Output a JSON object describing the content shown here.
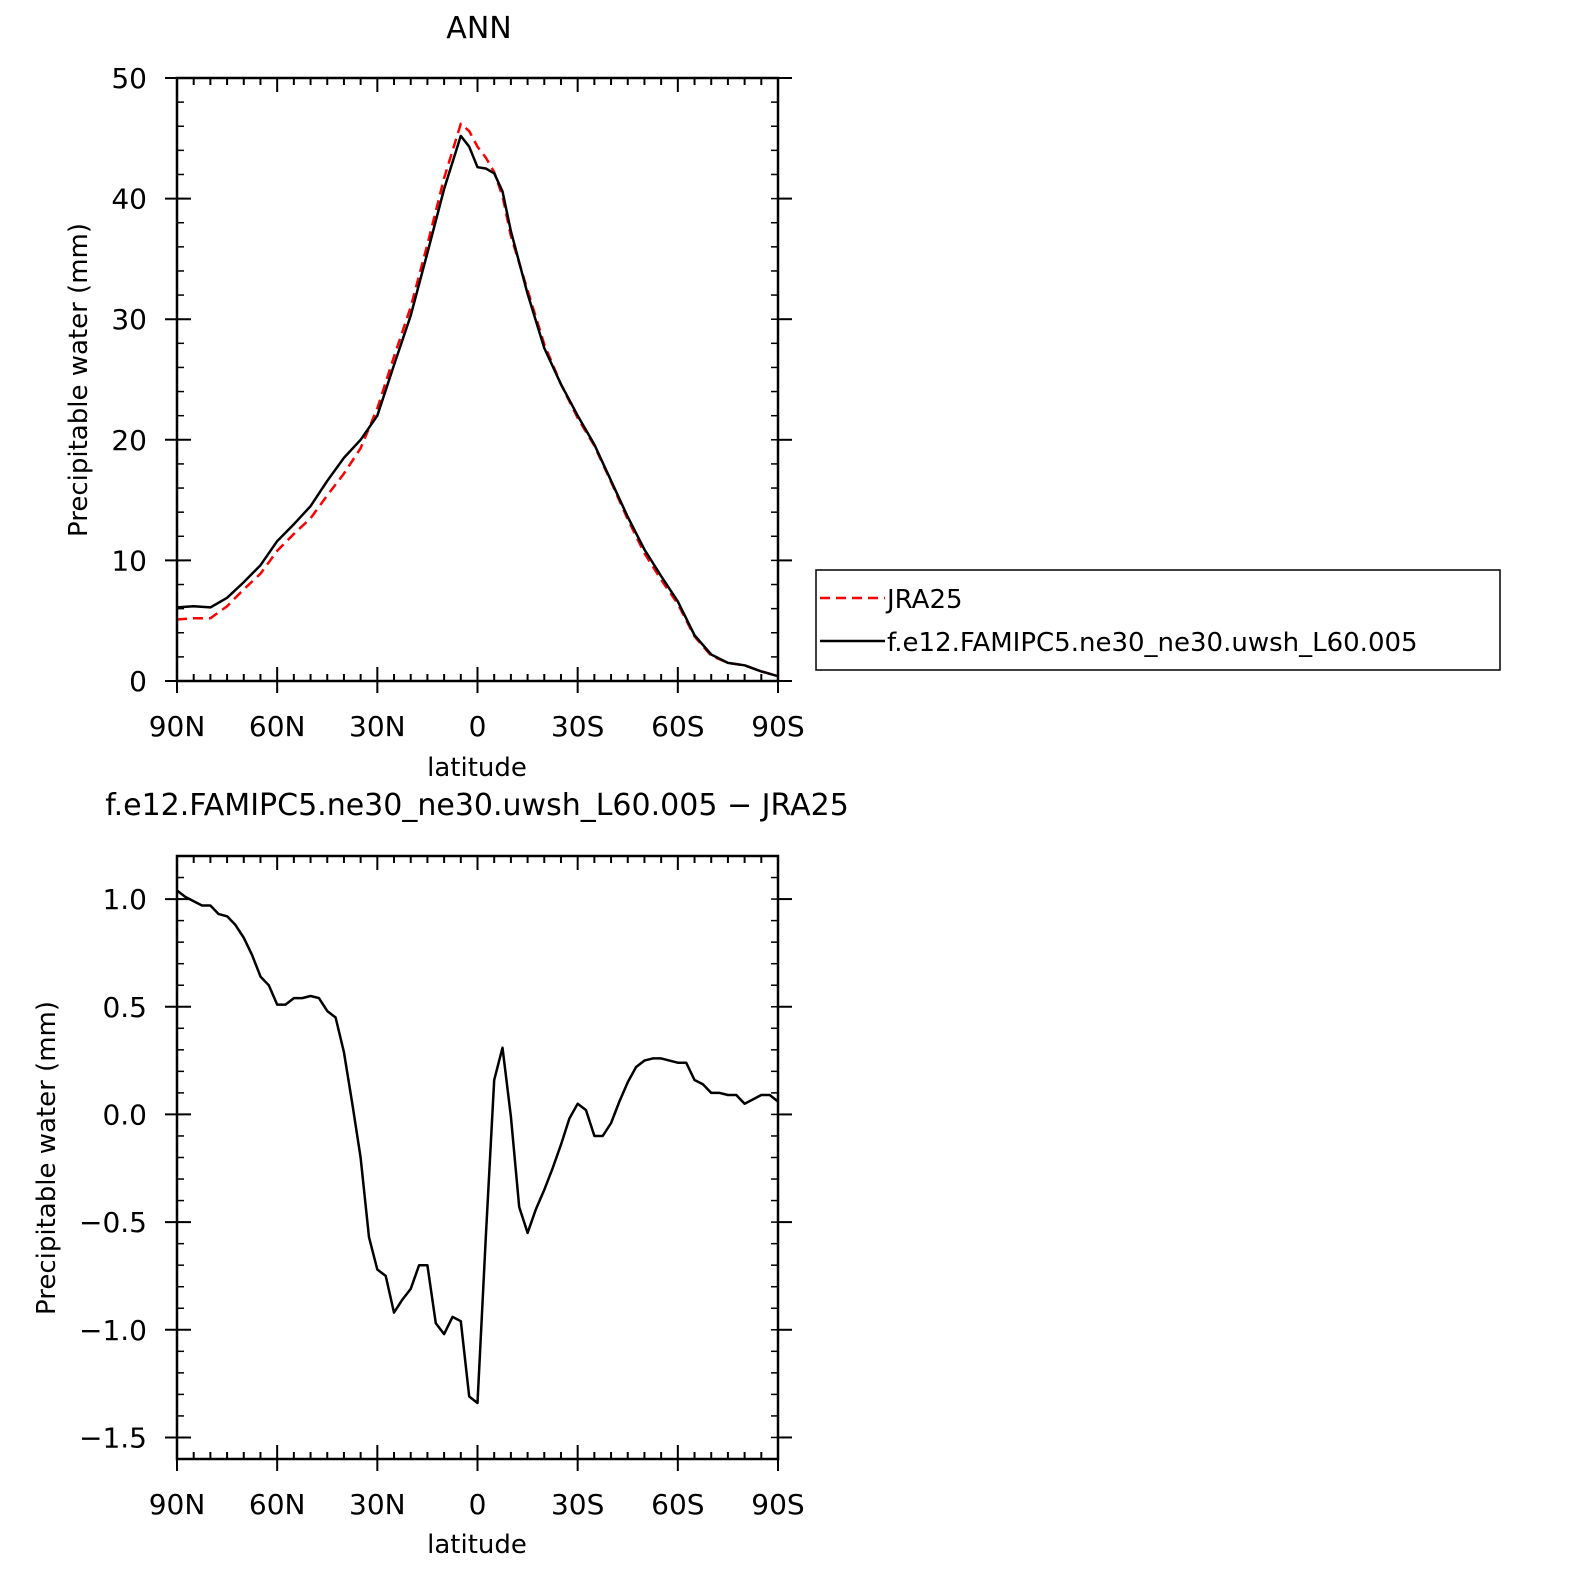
{
  "chart_data": [
    {
      "type": "line",
      "title": "ANN",
      "xlabel": "latitude",
      "ylabel": "Precipitable water (mm)",
      "xlim": [
        90,
        -90
      ],
      "ylim": [
        0,
        50
      ],
      "xticks": [
        90,
        60,
        30,
        0,
        -30,
        -60,
        -90
      ],
      "xtick_labels": [
        "90N",
        "60N",
        "30N",
        "0",
        "30S",
        "60S",
        "90S"
      ],
      "yticks": [
        0,
        10,
        20,
        30,
        40,
        50
      ],
      "ytick_labels": [
        "0",
        "10",
        "20",
        "30",
        "40",
        "50"
      ],
      "legend": "right",
      "series": [
        {
          "name": "JRA25",
          "color": "#ff0000",
          "dash": "dashed",
          "x": [
            90,
            85,
            80,
            75,
            70,
            65,
            60,
            55,
            50,
            45,
            40,
            35,
            30,
            25,
            20,
            15,
            10,
            5,
            2.5,
            0,
            -2.5,
            -5,
            -7.5,
            -10,
            -15,
            -20,
            -25,
            -30,
            -35,
            -40,
            -45,
            -50,
            -55,
            -60,
            -65,
            -70,
            -75,
            -80,
            -85,
            -90
          ],
          "y": [
            5.1,
            5.2,
            5.2,
            6.2,
            7.6,
            8.9,
            10.8,
            12.2,
            13.5,
            15.4,
            17.2,
            19.3,
            22.6,
            26.9,
            31.0,
            36.2,
            41.7,
            46.2,
            45.6,
            44.3,
            43.4,
            42.2,
            40.2,
            36.9,
            32.4,
            27.9,
            24.6,
            21.8,
            19.5,
            16.5,
            13.4,
            10.6,
            8.4,
            6.4,
            3.7,
            2.1,
            1.5,
            1.3,
            0.8,
            0.4
          ]
        },
        {
          "name": "f.e12.FAMIPC5.ne30_ne30.uwsh_L60.005",
          "color": "#000000",
          "dash": "solid",
          "x": [
            90,
            85,
            80,
            75,
            70,
            65,
            60,
            55,
            50,
            45,
            40,
            35,
            30,
            25,
            20,
            15,
            10,
            5,
            2.5,
            0,
            -2.5,
            -5,
            -7.5,
            -10,
            -15,
            -20,
            -25,
            -30,
            -35,
            -40,
            -45,
            -50,
            -55,
            -60,
            -65,
            -70,
            -75,
            -80,
            -85,
            -90
          ],
          "y": [
            6.1,
            6.2,
            6.1,
            6.9,
            8.2,
            9.6,
            11.6,
            13.0,
            14.5,
            16.6,
            18.5,
            20.0,
            22.0,
            26.2,
            30.3,
            35.5,
            40.8,
            45.2,
            44.3,
            42.6,
            42.5,
            42.1,
            40.6,
            37.3,
            32.1,
            27.6,
            24.6,
            22.0,
            19.6,
            16.6,
            13.6,
            10.9,
            8.7,
            6.6,
            3.8,
            2.2,
            1.5,
            1.3,
            0.8,
            0.4
          ]
        }
      ]
    },
    {
      "type": "line",
      "title": "f.e12.FAMIPC5.ne30_ne30.uwsh_L60.005 - JRA25",
      "xlabel": "latitude",
      "ylabel": "Precipitable water (mm)",
      "xlim": [
        90,
        -90
      ],
      "ylim": [
        -1.6,
        1.2
      ],
      "xticks": [
        90,
        60,
        30,
        0,
        -30,
        -60,
        -90
      ],
      "xtick_labels": [
        "90N",
        "60N",
        "30N",
        "0",
        "30S",
        "60S",
        "90S"
      ],
      "yticks": [
        -1.5,
        -1.0,
        -0.5,
        0.0,
        0.5,
        1.0
      ],
      "ytick_labels": [
        "-1.5",
        "-1.0",
        "-0.5",
        "0.0",
        "0.5",
        "1.0"
      ],
      "series": [
        {
          "color": "#000000",
          "x": [
            90,
            87.5,
            85,
            82.5,
            80,
            77.5,
            75,
            72.5,
            70,
            67.5,
            65,
            62.5,
            60,
            57.5,
            55,
            52.5,
            50,
            47.5,
            45,
            42.5,
            40,
            37.5,
            35,
            32.5,
            30,
            27.5,
            25,
            22.5,
            20,
            17.5,
            15,
            12.5,
            10,
            7.5,
            5,
            2.5,
            0,
            -2.5,
            -5,
            -7.5,
            -10,
            -12.5,
            -15,
            -17.5,
            -20,
            -22.5,
            -25,
            -27.5,
            -30,
            -32.5,
            -35,
            -37.5,
            -40,
            -42.5,
            -45,
            -47.5,
            -50,
            -52.5,
            -55,
            -57.5,
            -60,
            -62.5,
            -65,
            -67.5,
            -70,
            -72.5,
            -75,
            -77.5,
            -80,
            -82.5,
            -85,
            -87.5,
            -90
          ],
          "y": [
            1.04,
            1.01,
            0.99,
            0.97,
            0.97,
            0.93,
            0.92,
            0.88,
            0.82,
            0.74,
            0.64,
            0.6,
            0.51,
            0.51,
            0.54,
            0.54,
            0.55,
            0.54,
            0.48,
            0.45,
            0.29,
            0.05,
            -0.2,
            -0.57,
            -0.72,
            -0.75,
            -0.92,
            -0.86,
            -0.81,
            -0.7,
            -0.7,
            -0.97,
            -1.02,
            -0.94,
            -0.96,
            -1.31,
            -1.34,
            -0.57,
            0.16,
            0.31,
            -0.01,
            -0.43,
            -0.55,
            -0.44,
            -0.35,
            -0.25,
            -0.14,
            -0.02,
            0.05,
            0.02,
            -0.1,
            -0.1,
            -0.04,
            0.06,
            0.15,
            0.22,
            0.25,
            0.26,
            0.26,
            0.25,
            0.24,
            0.24,
            0.16,
            0.14,
            0.1,
            0.1,
            0.09,
            0.09,
            0.05,
            0.07,
            0.09,
            0.09,
            0.06
          ]
        }
      ]
    }
  ]
}
